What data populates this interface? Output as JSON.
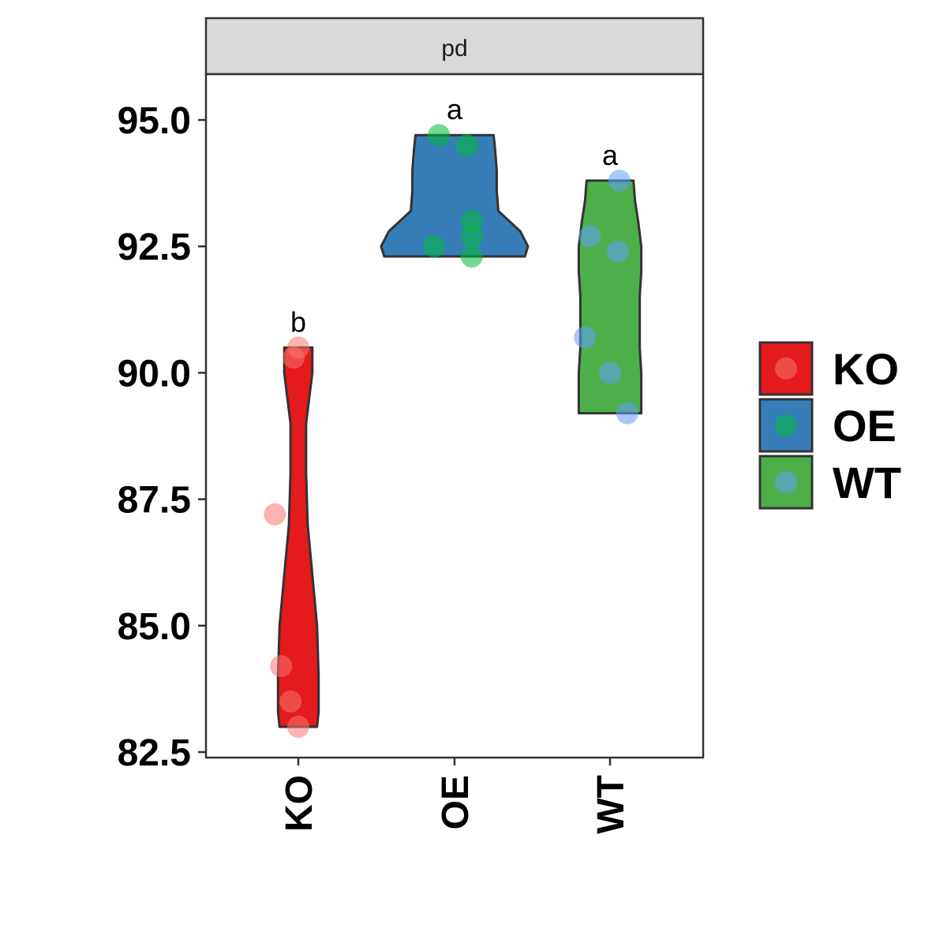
{
  "chart_data": {
    "type": "violin",
    "facet": "pd",
    "categories": [
      "KO",
      "OE",
      "WT"
    ],
    "ylim": [
      82.5,
      95.0
    ],
    "yticks": [
      "95.0",
      "92.5",
      "90.0",
      "87.5",
      "85.0",
      "82.5"
    ],
    "ytick_values": [
      95.0,
      92.5,
      90.0,
      87.5,
      85.0,
      82.5
    ],
    "grid": false,
    "legend_position": "right",
    "colors": {
      "KO": {
        "fill": "#E41A1C",
        "point": "#F8766D"
      },
      "OE": {
        "fill": "#377EB8",
        "point": "#00BA38"
      },
      "WT": {
        "fill": "#4DAF4A",
        "point": "#619CFF"
      }
    },
    "groups": [
      {
        "name": "KO",
        "letter": "b",
        "points": [
          90.5,
          90.3,
          87.2,
          84.2,
          83.5,
          83.0
        ],
        "jitter": [
          0.0,
          -0.03,
          -0.15,
          -0.11,
          -0.05,
          0.0
        ],
        "violin": {
          "ys": [
            83.0,
            83.3,
            84.0,
            85.0,
            86.0,
            87.0,
            88.0,
            89.0,
            90.0,
            90.5
          ],
          "half_widths": [
            0.12,
            0.13,
            0.13,
            0.12,
            0.09,
            0.06,
            0.05,
            0.05,
            0.09,
            0.09
          ]
        }
      },
      {
        "name": "OE",
        "letter": "a",
        "points": [
          94.7,
          94.5,
          93.0,
          92.7,
          92.5,
          92.3
        ],
        "jitter": [
          -0.1,
          0.08,
          0.11,
          0.11,
          -0.13,
          0.11
        ],
        "violin": {
          "ys": [
            92.3,
            92.5,
            92.8,
            93.2,
            93.6,
            94.0,
            94.4,
            94.7
          ],
          "half_widths": [
            0.45,
            0.47,
            0.42,
            0.28,
            0.27,
            0.27,
            0.26,
            0.25
          ]
        }
      },
      {
        "name": "WT",
        "letter": "a",
        "points": [
          93.8,
          92.7,
          92.4,
          90.7,
          90.0,
          89.2
        ],
        "jitter": [
          0.06,
          -0.13,
          0.05,
          -0.16,
          0.0,
          0.11
        ],
        "violin": {
          "ys": [
            89.2,
            89.6,
            90.0,
            90.5,
            91.0,
            91.5,
            92.0,
            92.5,
            93.0,
            93.4,
            93.8
          ],
          "half_widths": [
            0.2,
            0.2,
            0.2,
            0.19,
            0.19,
            0.19,
            0.2,
            0.2,
            0.18,
            0.16,
            0.15
          ]
        }
      }
    ],
    "legend": [
      "KO",
      "OE",
      "WT"
    ]
  }
}
